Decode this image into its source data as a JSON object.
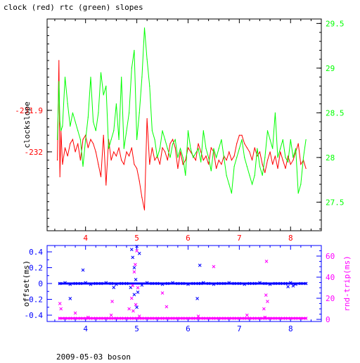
{
  "chart_data": [
    {
      "type": "line",
      "title": "clock (red) rtc (green) slopes",
      "xlabel": "",
      "ylabel": "clockslope",
      "y2label": "",
      "xlim": [
        3.25,
        8.6
      ],
      "ylim": [
        -232.19,
        -231.68
      ],
      "y2lim": [
        27.18,
        29.55
      ],
      "xticks": [
        "4",
        "5",
        "6",
        "7",
        "8"
      ],
      "yticks": [
        "-231.9",
        "-232"
      ],
      "y2ticks": [
        "27.5",
        "28",
        "28.5",
        "29",
        "29.5"
      ],
      "grid": false,
      "colors": {
        "axes": "#000000",
        "left_axis": "#ff0000",
        "right_axis": "#00ff00",
        "x_ticks": "#ff0000"
      },
      "series": [
        {
          "name": "clock",
          "color": "#ff0000",
          "axis": "left",
          "x": [
            3.45,
            3.48,
            3.5,
            3.52,
            3.55,
            3.6,
            3.65,
            3.7,
            3.75,
            3.8,
            3.85,
            3.9,
            3.95,
            4.0,
            4.05,
            4.1,
            4.15,
            4.2,
            4.25,
            4.3,
            4.35,
            4.4,
            4.45,
            4.5,
            4.55,
            4.6,
            4.65,
            4.7,
            4.75,
            4.8,
            4.85,
            4.9,
            4.95,
            5.0,
            5.05,
            5.1,
            5.15,
            5.2,
            5.25,
            5.3,
            5.35,
            5.4,
            5.45,
            5.5,
            5.55,
            5.6,
            5.65,
            5.7,
            5.75,
            5.8,
            5.85,
            5.9,
            5.95,
            6.0,
            6.05,
            6.1,
            6.15,
            6.2,
            6.25,
            6.3,
            6.35,
            6.4,
            6.45,
            6.5,
            6.55,
            6.6,
            6.65,
            6.7,
            6.75,
            6.8,
            6.85,
            6.9,
            6.95,
            7.0,
            7.05,
            7.1,
            7.15,
            7.2,
            7.25,
            7.3,
            7.35,
            7.4,
            7.45,
            7.5,
            7.55,
            7.6,
            7.65,
            7.7,
            7.75,
            7.8,
            7.85,
            7.9,
            7.95,
            8.0,
            8.05,
            8.1,
            8.15,
            8.2,
            8.25,
            8.3
          ],
          "y": [
            -232.02,
            -231.78,
            -232.06,
            -231.95,
            -232.03,
            -231.99,
            -232.01,
            -231.98,
            -231.97,
            -232.0,
            -231.98,
            -232.02,
            -231.97,
            -231.96,
            -231.99,
            -231.97,
            -231.98,
            -232.0,
            -232.03,
            -232.06,
            -231.96,
            -232.08,
            -231.97,
            -232.02,
            -232.0,
            -232.01,
            -231.99,
            -232.02,
            -232.03,
            -232.0,
            -232.01,
            -231.99,
            -232.03,
            -232.04,
            -232.07,
            -232.11,
            -232.14,
            -231.92,
            -232.03,
            -231.99,
            -232.02,
            -232.01,
            -232.03,
            -231.99,
            -232.0,
            -232.02,
            -231.98,
            -231.97,
            -231.99,
            -232.04,
            -232.0,
            -232.03,
            -232.02,
            -231.99,
            -232.0,
            -232.01,
            -232.02,
            -231.98,
            -232.0,
            -232.02,
            -232.01,
            -232.03,
            -231.99,
            -232.0,
            -232.04,
            -232.02,
            -232.03,
            -232.01,
            -232.02,
            -232.0,
            -232.02,
            -232.01,
            -231.98,
            -231.96,
            -231.96,
            -231.98,
            -231.99,
            -232.0,
            -232.02,
            -231.99,
            -232.01,
            -232.0,
            -232.03,
            -232.05,
            -232.02,
            -232.0,
            -232.03,
            -232.01,
            -232.04,
            -232.0,
            -232.02,
            -232.04,
            -232.01,
            -232.03,
            -232.02,
            -232.0,
            -231.98,
            -232.03,
            -232.02,
            -232.04
          ]
        },
        {
          "name": "rtc",
          "color": "#00ff00",
          "axis": "right",
          "x": [
            3.45,
            3.48,
            3.5,
            3.52,
            3.55,
            3.6,
            3.65,
            3.7,
            3.75,
            3.8,
            3.85,
            3.9,
            3.95,
            4.0,
            4.05,
            4.1,
            4.15,
            4.2,
            4.25,
            4.3,
            4.35,
            4.4,
            4.45,
            4.5,
            4.55,
            4.6,
            4.65,
            4.7,
            4.75,
            4.8,
            4.85,
            4.9,
            4.95,
            5.0,
            5.05,
            5.1,
            5.15,
            5.2,
            5.25,
            5.3,
            5.35,
            5.4,
            5.45,
            5.5,
            5.55,
            5.6,
            5.65,
            5.7,
            5.75,
            5.8,
            5.85,
            5.9,
            5.95,
            6.0,
            6.05,
            6.1,
            6.15,
            6.2,
            6.25,
            6.3,
            6.35,
            6.4,
            6.45,
            6.5,
            6.55,
            6.6,
            6.65,
            6.7,
            6.75,
            6.8,
            6.85,
            6.9,
            6.95,
            7.0,
            7.05,
            7.1,
            7.15,
            7.2,
            7.25,
            7.3,
            7.35,
            7.4,
            7.45,
            7.5,
            7.55,
            7.6,
            7.65,
            7.7,
            7.75,
            7.8,
            7.85,
            7.9,
            7.95,
            8.0,
            8.05,
            8.1,
            8.15,
            8.2,
            8.25,
            8.3
          ],
          "y": [
            28.2,
            28.85,
            28.4,
            28.3,
            28.35,
            28.9,
            28.6,
            28.35,
            28.5,
            28.4,
            28.3,
            28.2,
            27.9,
            28.2,
            28.45,
            28.9,
            28.4,
            28.3,
            28.5,
            28.95,
            28.7,
            28.8,
            28.1,
            28.2,
            28.3,
            28.6,
            28.2,
            28.9,
            28.1,
            28.3,
            28.5,
            29.0,
            29.2,
            28.2,
            28.5,
            28.9,
            29.45,
            29.1,
            28.8,
            28.3,
            28.2,
            28.0,
            28.1,
            28.3,
            28.2,
            28.1,
            28.0,
            28.15,
            28.2,
            28.0,
            28.1,
            28.0,
            27.8,
            28.3,
            28.1,
            28.0,
            28.05,
            28.1,
            27.95,
            28.3,
            28.1,
            28.0,
            27.85,
            28.1,
            28.0,
            28.1,
            28.2,
            28.0,
            27.8,
            27.7,
            27.6,
            27.9,
            28.0,
            28.1,
            28.2,
            28.0,
            27.9,
            27.8,
            27.7,
            27.8,
            28.1,
            27.9,
            27.8,
            28.0,
            28.3,
            28.2,
            28.1,
            28.5,
            28.0,
            28.1,
            28.2,
            28.0,
            27.95,
            28.2,
            28.0,
            28.1,
            27.6,
            27.7,
            28.0,
            28.2
          ]
        }
      ]
    },
    {
      "type": "scatter",
      "title": "",
      "xlabel": "",
      "ylabel": "offset(ms)",
      "y2label": "rnd-trip(ms)",
      "xlim": [
        3.25,
        8.6
      ],
      "ylim": [
        -0.48,
        0.48
      ],
      "y2lim": [
        -2,
        70
      ],
      "xticks": [
        "4",
        "5",
        "6",
        "7",
        "8"
      ],
      "yticks": [
        "0.4",
        "0.2",
        "0",
        "-0.2",
        "-0.4"
      ],
      "y2ticks": [
        "0",
        "20",
        "40",
        "60"
      ],
      "grid": false,
      "colors": {
        "axes": "#0000ff",
        "left_axis": "#0000ff",
        "right_axis": "#ff00ff",
        "x_ticks": "#0000ff"
      },
      "series": [
        {
          "name": "offset",
          "color": "#0000ff",
          "axis": "left",
          "x": [
            3.5,
            3.6,
            3.7,
            3.8,
            3.9,
            4.0,
            4.1,
            4.2,
            4.3,
            4.4,
            4.5,
            4.6,
            4.7,
            4.8,
            4.88,
            4.9,
            4.92,
            4.95,
            4.98,
            5.0,
            5.05,
            5.1,
            5.2,
            5.3,
            5.4,
            5.5,
            5.6,
            5.7,
            5.8,
            5.9,
            6.0,
            6.1,
            6.2,
            6.25,
            6.3,
            6.4,
            6.5,
            6.6,
            6.7,
            6.8,
            6.9,
            7.0,
            7.1,
            7.2,
            7.3,
            7.4,
            7.5,
            7.6,
            7.7,
            7.8,
            7.9,
            8.0,
            8.1,
            8.2,
            8.3,
            3.7,
            3.95,
            4.55,
            4.95,
            5.02,
            5.0,
            6.18,
            6.23,
            7.95,
            8.05
          ],
          "y": [
            0.0,
            0.01,
            -0.01,
            0.0,
            0.0,
            0.01,
            -0.01,
            0.0,
            0.0,
            0.01,
            0.0,
            -0.01,
            0.0,
            0.0,
            -0.05,
            0.43,
            0.33,
            0.2,
            0.05,
            0.47,
            0.38,
            -0.02,
            0.01,
            0.0,
            0.0,
            -0.01,
            0.0,
            0.01,
            0.0,
            0.0,
            -0.01,
            0.0,
            0.0,
            0.0,
            0.01,
            0.0,
            -0.01,
            0.0,
            0.0,
            0.01,
            0.0,
            0.0,
            -0.01,
            0.0,
            0.0,
            0.01,
            0.0,
            -0.01,
            0.0,
            0.0,
            0.0,
            0.01,
            -0.01,
            0.0,
            0.0,
            -0.19,
            0.17,
            -0.05,
            -0.14,
            -0.11,
            -0.3,
            -0.19,
            0.23,
            -0.04,
            -0.03
          ]
        },
        {
          "name": "rnd-trip",
          "color": "#ff00ff",
          "axis": "right",
          "x": [
            3.5,
            3.6,
            3.7,
            3.8,
            3.9,
            4.0,
            4.1,
            4.2,
            4.3,
            4.4,
            4.5,
            4.6,
            4.7,
            4.8,
            4.9,
            5.0,
            5.1,
            5.2,
            5.3,
            5.4,
            5.5,
            5.6,
            5.7,
            5.8,
            5.9,
            6.0,
            6.1,
            6.2,
            6.3,
            6.4,
            6.5,
            6.6,
            6.7,
            6.8,
            6.9,
            7.0,
            7.1,
            7.2,
            7.3,
            7.4,
            7.5,
            7.6,
            7.7,
            7.8,
            7.9,
            8.0,
            8.1,
            8.2,
            8.3,
            3.5,
            3.52,
            3.8,
            4.05,
            4.5,
            4.52,
            4.85,
            4.9,
            4.92,
            4.95,
            4.97,
            5.0,
            5.02,
            4.98,
            4.93,
            5.05,
            5.5,
            5.58,
            6.2,
            6.5,
            7.15,
            7.5,
            7.52,
            7.55,
            7.53,
            7.48
          ],
          "y": [
            1,
            1,
            1,
            1,
            1,
            1,
            1,
            1,
            1,
            1,
            1,
            1,
            1,
            1,
            1,
            1,
            1,
            1,
            1,
            1,
            1,
            1,
            1,
            1,
            1,
            1,
            1,
            1,
            1,
            1,
            1,
            1,
            1,
            1,
            1,
            1,
            1,
            1,
            1,
            1,
            1,
            1,
            1,
            1,
            1,
            1,
            1,
            1,
            1,
            15,
            10,
            6,
            2,
            4,
            17,
            10,
            20,
            32,
            45,
            52,
            65,
            30,
            14,
            8,
            3,
            25,
            12,
            3,
            50,
            4,
            2,
            23,
            17,
            55,
            10
          ]
        }
      ]
    }
  ],
  "footer_text": "2009-05-03 boson"
}
